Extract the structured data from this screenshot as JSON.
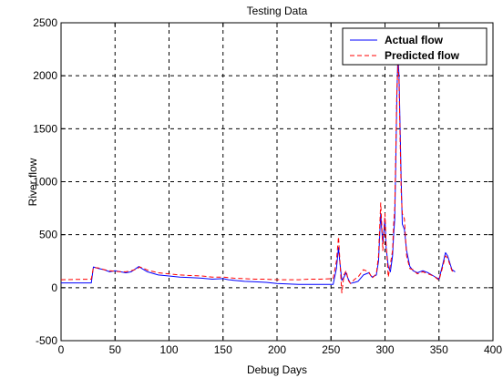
{
  "chart_data": {
    "type": "line",
    "title": "Testing Data",
    "xlabel": "Debug Days",
    "ylabel": "River flow",
    "xlim": [
      0,
      400
    ],
    "ylim": [
      -500,
      2500
    ],
    "xticks": [
      0,
      50,
      100,
      150,
      200,
      250,
      300,
      350,
      400
    ],
    "yticks": [
      -500,
      0,
      500,
      1000,
      1500,
      2000,
      2500
    ],
    "grid": true,
    "legend_position": "top-right",
    "series": [
      {
        "name": "Actual flow",
        "color": "#0000ff",
        "style": "solid",
        "points": [
          [
            0,
            45
          ],
          [
            28,
            45
          ],
          [
            30,
            195
          ],
          [
            35,
            180
          ],
          [
            40,
            170
          ],
          [
            45,
            150
          ],
          [
            50,
            160
          ],
          [
            55,
            150
          ],
          [
            60,
            140
          ],
          [
            65,
            150
          ],
          [
            70,
            185
          ],
          [
            72,
            200
          ],
          [
            75,
            180
          ],
          [
            80,
            150
          ],
          [
            90,
            120
          ],
          [
            100,
            110
          ],
          [
            110,
            100
          ],
          [
            120,
            95
          ],
          [
            130,
            90
          ],
          [
            140,
            80
          ],
          [
            150,
            85
          ],
          [
            155,
            75
          ],
          [
            160,
            70
          ],
          [
            170,
            60
          ],
          [
            180,
            55
          ],
          [
            190,
            50
          ],
          [
            200,
            40
          ],
          [
            210,
            35
          ],
          [
            220,
            30
          ],
          [
            230,
            30
          ],
          [
            240,
            30
          ],
          [
            252,
            30
          ],
          [
            255,
            180
          ],
          [
            257,
            380
          ],
          [
            258,
            260
          ],
          [
            260,
            70
          ],
          [
            262,
            100
          ],
          [
            264,
            140
          ],
          [
            266,
            80
          ],
          [
            268,
            40
          ],
          [
            272,
            50
          ],
          [
            275,
            60
          ],
          [
            280,
            120
          ],
          [
            285,
            140
          ],
          [
            288,
            100
          ],
          [
            292,
            120
          ],
          [
            294,
            250
          ],
          [
            296,
            700
          ],
          [
            297,
            550
          ],
          [
            298,
            430
          ],
          [
            300,
            650
          ],
          [
            301,
            380
          ],
          [
            303,
            200
          ],
          [
            305,
            150
          ],
          [
            307,
            300
          ],
          [
            308,
            500
          ],
          [
            309,
            650
          ],
          [
            310,
            1200
          ],
          [
            311,
            1800
          ],
          [
            312,
            2200
          ],
          [
            313,
            2000
          ],
          [
            314,
            1500
          ],
          [
            315,
            1000
          ],
          [
            316,
            600
          ],
          [
            318,
            550
          ],
          [
            320,
            350
          ],
          [
            323,
            200
          ],
          [
            326,
            160
          ],
          [
            330,
            140
          ],
          [
            335,
            160
          ],
          [
            340,
            140
          ],
          [
            345,
            110
          ],
          [
            350,
            80
          ],
          [
            353,
            200
          ],
          [
            356,
            330
          ],
          [
            358,
            300
          ],
          [
            362,
            170
          ],
          [
            365,
            150
          ]
        ]
      },
      {
        "name": "Predicted flow",
        "color": "#ff0000",
        "style": "dashed",
        "points": [
          [
            0,
            75
          ],
          [
            28,
            80
          ],
          [
            30,
            190
          ],
          [
            35,
            185
          ],
          [
            40,
            170
          ],
          [
            45,
            160
          ],
          [
            50,
            155
          ],
          [
            55,
            150
          ],
          [
            60,
            150
          ],
          [
            65,
            160
          ],
          [
            70,
            175
          ],
          [
            73,
            195
          ],
          [
            76,
            185
          ],
          [
            80,
            165
          ],
          [
            90,
            140
          ],
          [
            100,
            130
          ],
          [
            110,
            120
          ],
          [
            120,
            115
          ],
          [
            130,
            110
          ],
          [
            140,
            100
          ],
          [
            150,
            100
          ],
          [
            160,
            90
          ],
          [
            170,
            85
          ],
          [
            180,
            80
          ],
          [
            190,
            80
          ],
          [
            200,
            75
          ],
          [
            210,
            75
          ],
          [
            220,
            75
          ],
          [
            230,
            80
          ],
          [
            240,
            80
          ],
          [
            252,
            85
          ],
          [
            255,
            250
          ],
          [
            257,
            480
          ],
          [
            258,
            300
          ],
          [
            260,
            -50
          ],
          [
            262,
            120
          ],
          [
            264,
            160
          ],
          [
            266,
            70
          ],
          [
            268,
            40
          ],
          [
            272,
            80
          ],
          [
            275,
            100
          ],
          [
            280,
            170
          ],
          [
            285,
            150
          ],
          [
            288,
            90
          ],
          [
            292,
            130
          ],
          [
            294,
            300
          ],
          [
            296,
            800
          ],
          [
            297,
            600
          ],
          [
            298,
            350
          ],
          [
            300,
            700
          ],
          [
            301,
            420
          ],
          [
            303,
            100
          ],
          [
            305,
            220
          ],
          [
            307,
            350
          ],
          [
            308,
            600
          ],
          [
            309,
            750
          ],
          [
            310,
            1300
          ],
          [
            311,
            1850
          ],
          [
            312,
            2100
          ],
          [
            313,
            1950
          ],
          [
            314,
            1400
          ],
          [
            315,
            900
          ],
          [
            316,
            700
          ],
          [
            318,
            650
          ],
          [
            320,
            300
          ],
          [
            323,
            180
          ],
          [
            326,
            170
          ],
          [
            330,
            130
          ],
          [
            335,
            150
          ],
          [
            340,
            130
          ],
          [
            345,
            110
          ],
          [
            350,
            70
          ],
          [
            353,
            180
          ],
          [
            356,
            300
          ],
          [
            358,
            280
          ],
          [
            362,
            160
          ],
          [
            365,
            140
          ]
        ]
      }
    ]
  }
}
